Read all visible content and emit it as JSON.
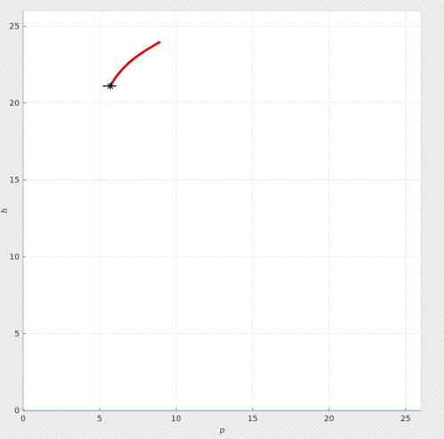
{
  "chart_data": {
    "type": "line",
    "title": "",
    "xlabel": "p",
    "ylabel": "h",
    "xlim": [
      0,
      26
    ],
    "ylim": [
      0,
      26
    ],
    "x_ticks": [
      0,
      5,
      10,
      15,
      20,
      25
    ],
    "y_ticks": [
      0,
      5,
      10,
      15,
      20,
      25
    ],
    "x_tick_labels": [
      "0",
      "5",
      "10",
      "15",
      "20",
      "25"
    ],
    "y_tick_labels": [
      "0",
      "5",
      "10",
      "15",
      "20",
      "25"
    ],
    "grid": true,
    "highlight_lines": [
      {
        "axis": "x",
        "value": 25,
        "color": "#c8e6a0"
      },
      {
        "axis": "y",
        "value": 15,
        "color": "#c8e6a0"
      }
    ],
    "series": [
      {
        "color": "#e00000",
        "x": [
          5.7,
          6.0,
          6.4,
          6.9,
          7.4,
          7.9,
          8.4,
          8.9
        ],
        "y": [
          21.1,
          21.6,
          22.1,
          22.6,
          23.0,
          23.35,
          23.65,
          23.95
        ]
      }
    ],
    "markers": [
      {
        "symbol": "star",
        "color": "#000000",
        "x": 5.7,
        "y": 21.1
      }
    ],
    "reference_lines": [
      {
        "color": "#000000",
        "x": [
          5.2,
          6.1
        ],
        "y": [
          21.1,
          21.1
        ]
      }
    ],
    "colors": {
      "axis": "#7a9cc6",
      "grid": "#c8d8e8"
    }
  }
}
